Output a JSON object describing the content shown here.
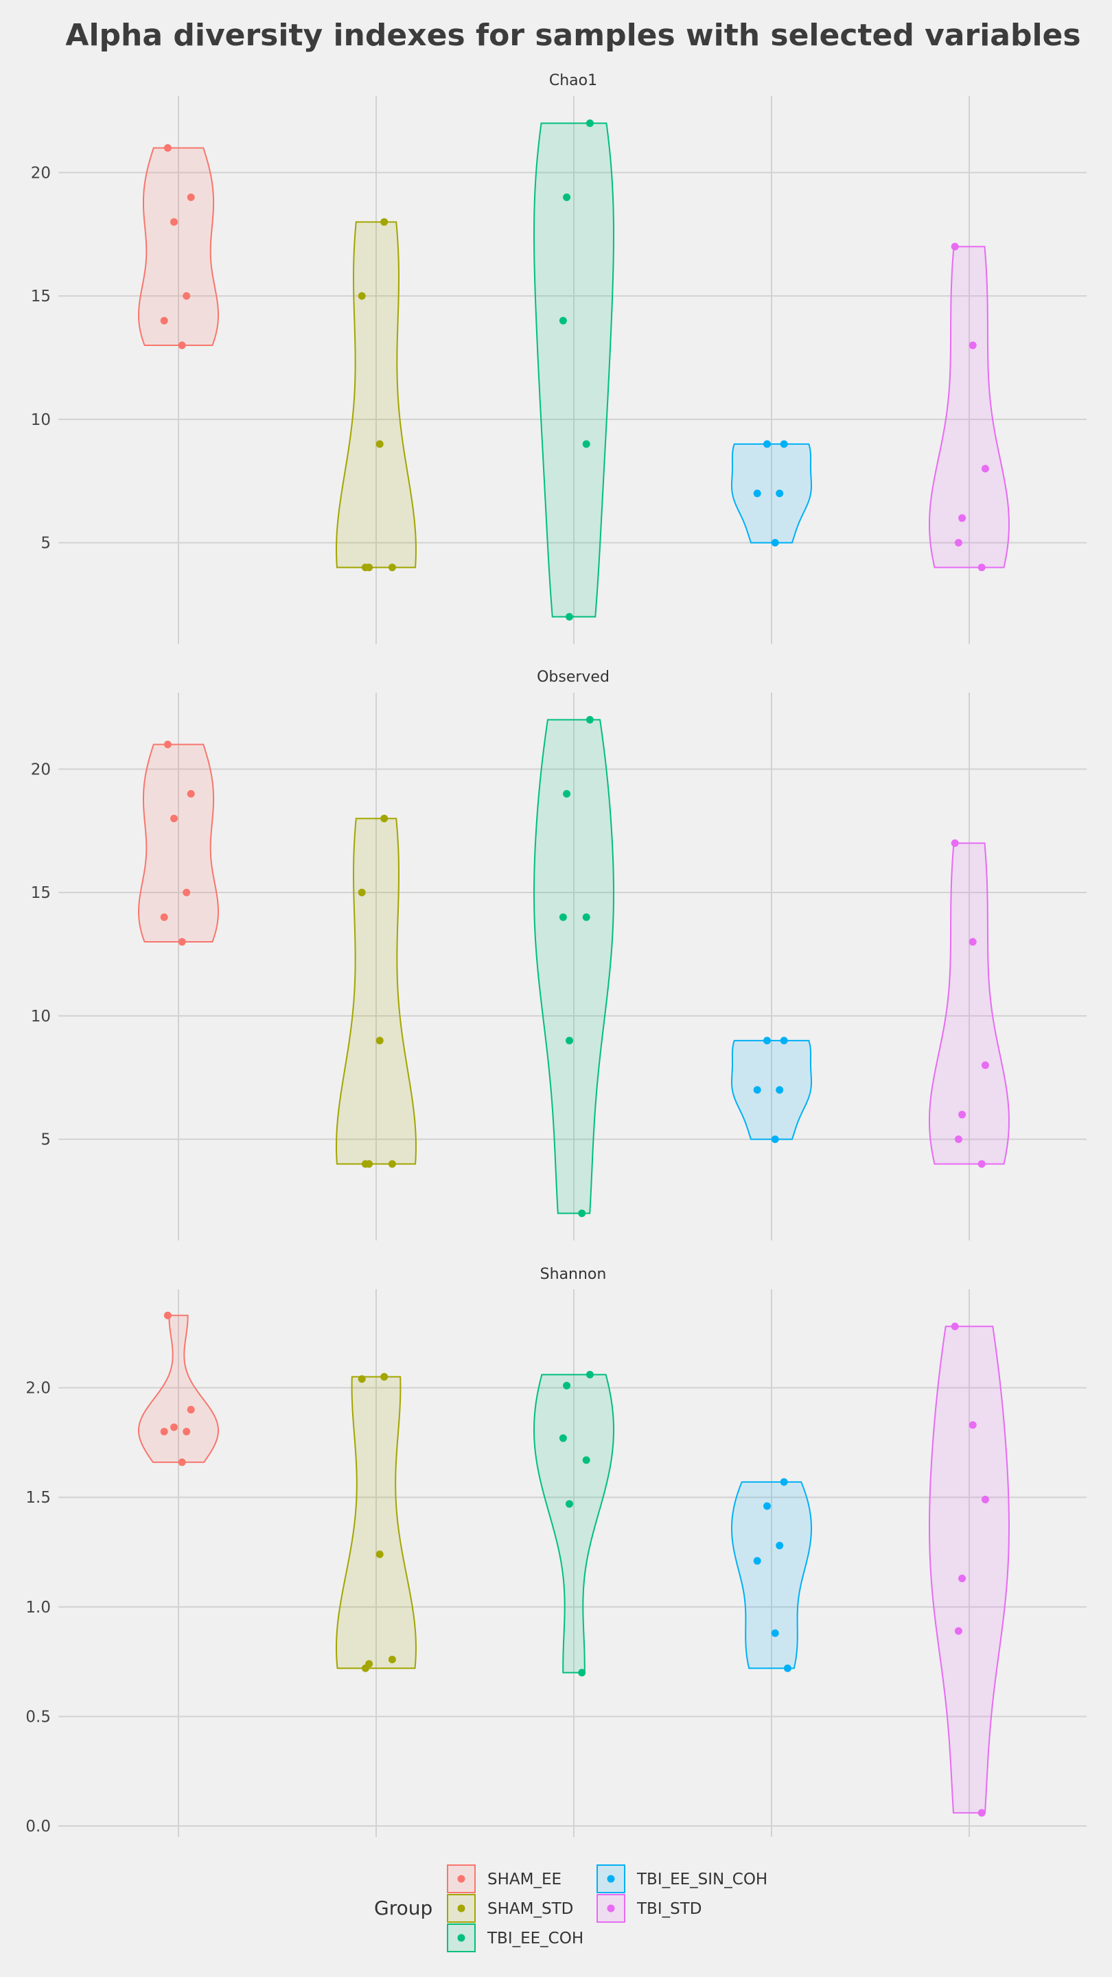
{
  "chart_data": {
    "type": "violin",
    "title": "Alpha diversity indexes for samples with selected variables",
    "grid": true,
    "legend_position": "bottom",
    "legend": {
      "title": "Group",
      "entries": [
        {
          "name": "SHAM_EE",
          "color": "#F8766D"
        },
        {
          "name": "SHAM_STD",
          "color": "#A3A500"
        },
        {
          "name": "TBI_EE_COH",
          "color": "#00BF7D"
        },
        {
          "name": "TBI_EE_SIN_COH",
          "color": "#00B0F6"
        },
        {
          "name": "TBI_STD",
          "color": "#E76BF3"
        }
      ]
    },
    "categories": [
      "SHAM_EE",
      "SHAM_STD",
      "TBI_EE_COH",
      "TBI_EE_SIN_COH",
      "TBI_STD"
    ],
    "panels": [
      {
        "name": "Chao1",
        "ylim": [
          0.9,
          23.1
        ],
        "yticks": [
          5,
          10,
          15,
          20
        ],
        "ytick_labels": [
          "5",
          "10",
          "15",
          "20"
        ],
        "series": [
          {
            "name": "SHAM_EE",
            "values": [
              21,
              19,
              18,
              15,
              14,
              13
            ]
          },
          {
            "name": "SHAM_STD",
            "values": [
              18,
              15,
              9,
              4,
              4,
              4
            ]
          },
          {
            "name": "TBI_EE_COH",
            "values": [
              22,
              19,
              14,
              9,
              2
            ]
          },
          {
            "name": "TBI_EE_SIN_COH",
            "values": [
              9,
              9,
              7,
              7,
              5
            ]
          },
          {
            "name": "TBI_STD",
            "values": [
              17,
              13,
              8,
              6,
              5,
              4
            ]
          }
        ]
      },
      {
        "name": "Observed",
        "ylim": [
          0.9,
          23.1
        ],
        "yticks": [
          5,
          10,
          15,
          20
        ],
        "ytick_labels": [
          "5",
          "10",
          "15",
          "20"
        ],
        "series": [
          {
            "name": "SHAM_EE",
            "values": [
              21,
              19,
              18,
              15,
              14,
              13
            ]
          },
          {
            "name": "SHAM_STD",
            "values": [
              18,
              15,
              9,
              4,
              4,
              4
            ]
          },
          {
            "name": "TBI_EE_COH",
            "values": [
              22,
              19,
              14,
              14,
              9,
              2
            ]
          },
          {
            "name": "TBI_EE_SIN_COH",
            "values": [
              9,
              9,
              7,
              7,
              5
            ]
          },
          {
            "name": "TBI_STD",
            "values": [
              17,
              13,
              8,
              6,
              5,
              4
            ]
          }
        ]
      },
      {
        "name": "Shannon",
        "ylim": [
          -0.05,
          2.45
        ],
        "yticks": [
          0,
          0.5,
          1,
          1.5,
          2
        ],
        "ytick_labels": [
          "0.0",
          "0.5",
          "1.0",
          "1.5",
          "2.0"
        ],
        "series": [
          {
            "name": "SHAM_EE",
            "values": [
              2.33,
              1.9,
              1.82,
              1.8,
              1.8,
              1.66
            ]
          },
          {
            "name": "SHAM_STD",
            "values": [
              2.05,
              2.04,
              1.24,
              0.76,
              0.74,
              0.72
            ]
          },
          {
            "name": "TBI_EE_COH",
            "values": [
              2.06,
              2.01,
              1.77,
              1.67,
              1.47,
              0.7
            ]
          },
          {
            "name": "TBI_EE_SIN_COH",
            "values": [
              1.57,
              1.46,
              1.28,
              1.21,
              0.88,
              0.72
            ]
          },
          {
            "name": "TBI_STD",
            "values": [
              2.28,
              1.83,
              1.49,
              1.13,
              0.89,
              0.06
            ]
          }
        ]
      }
    ]
  }
}
